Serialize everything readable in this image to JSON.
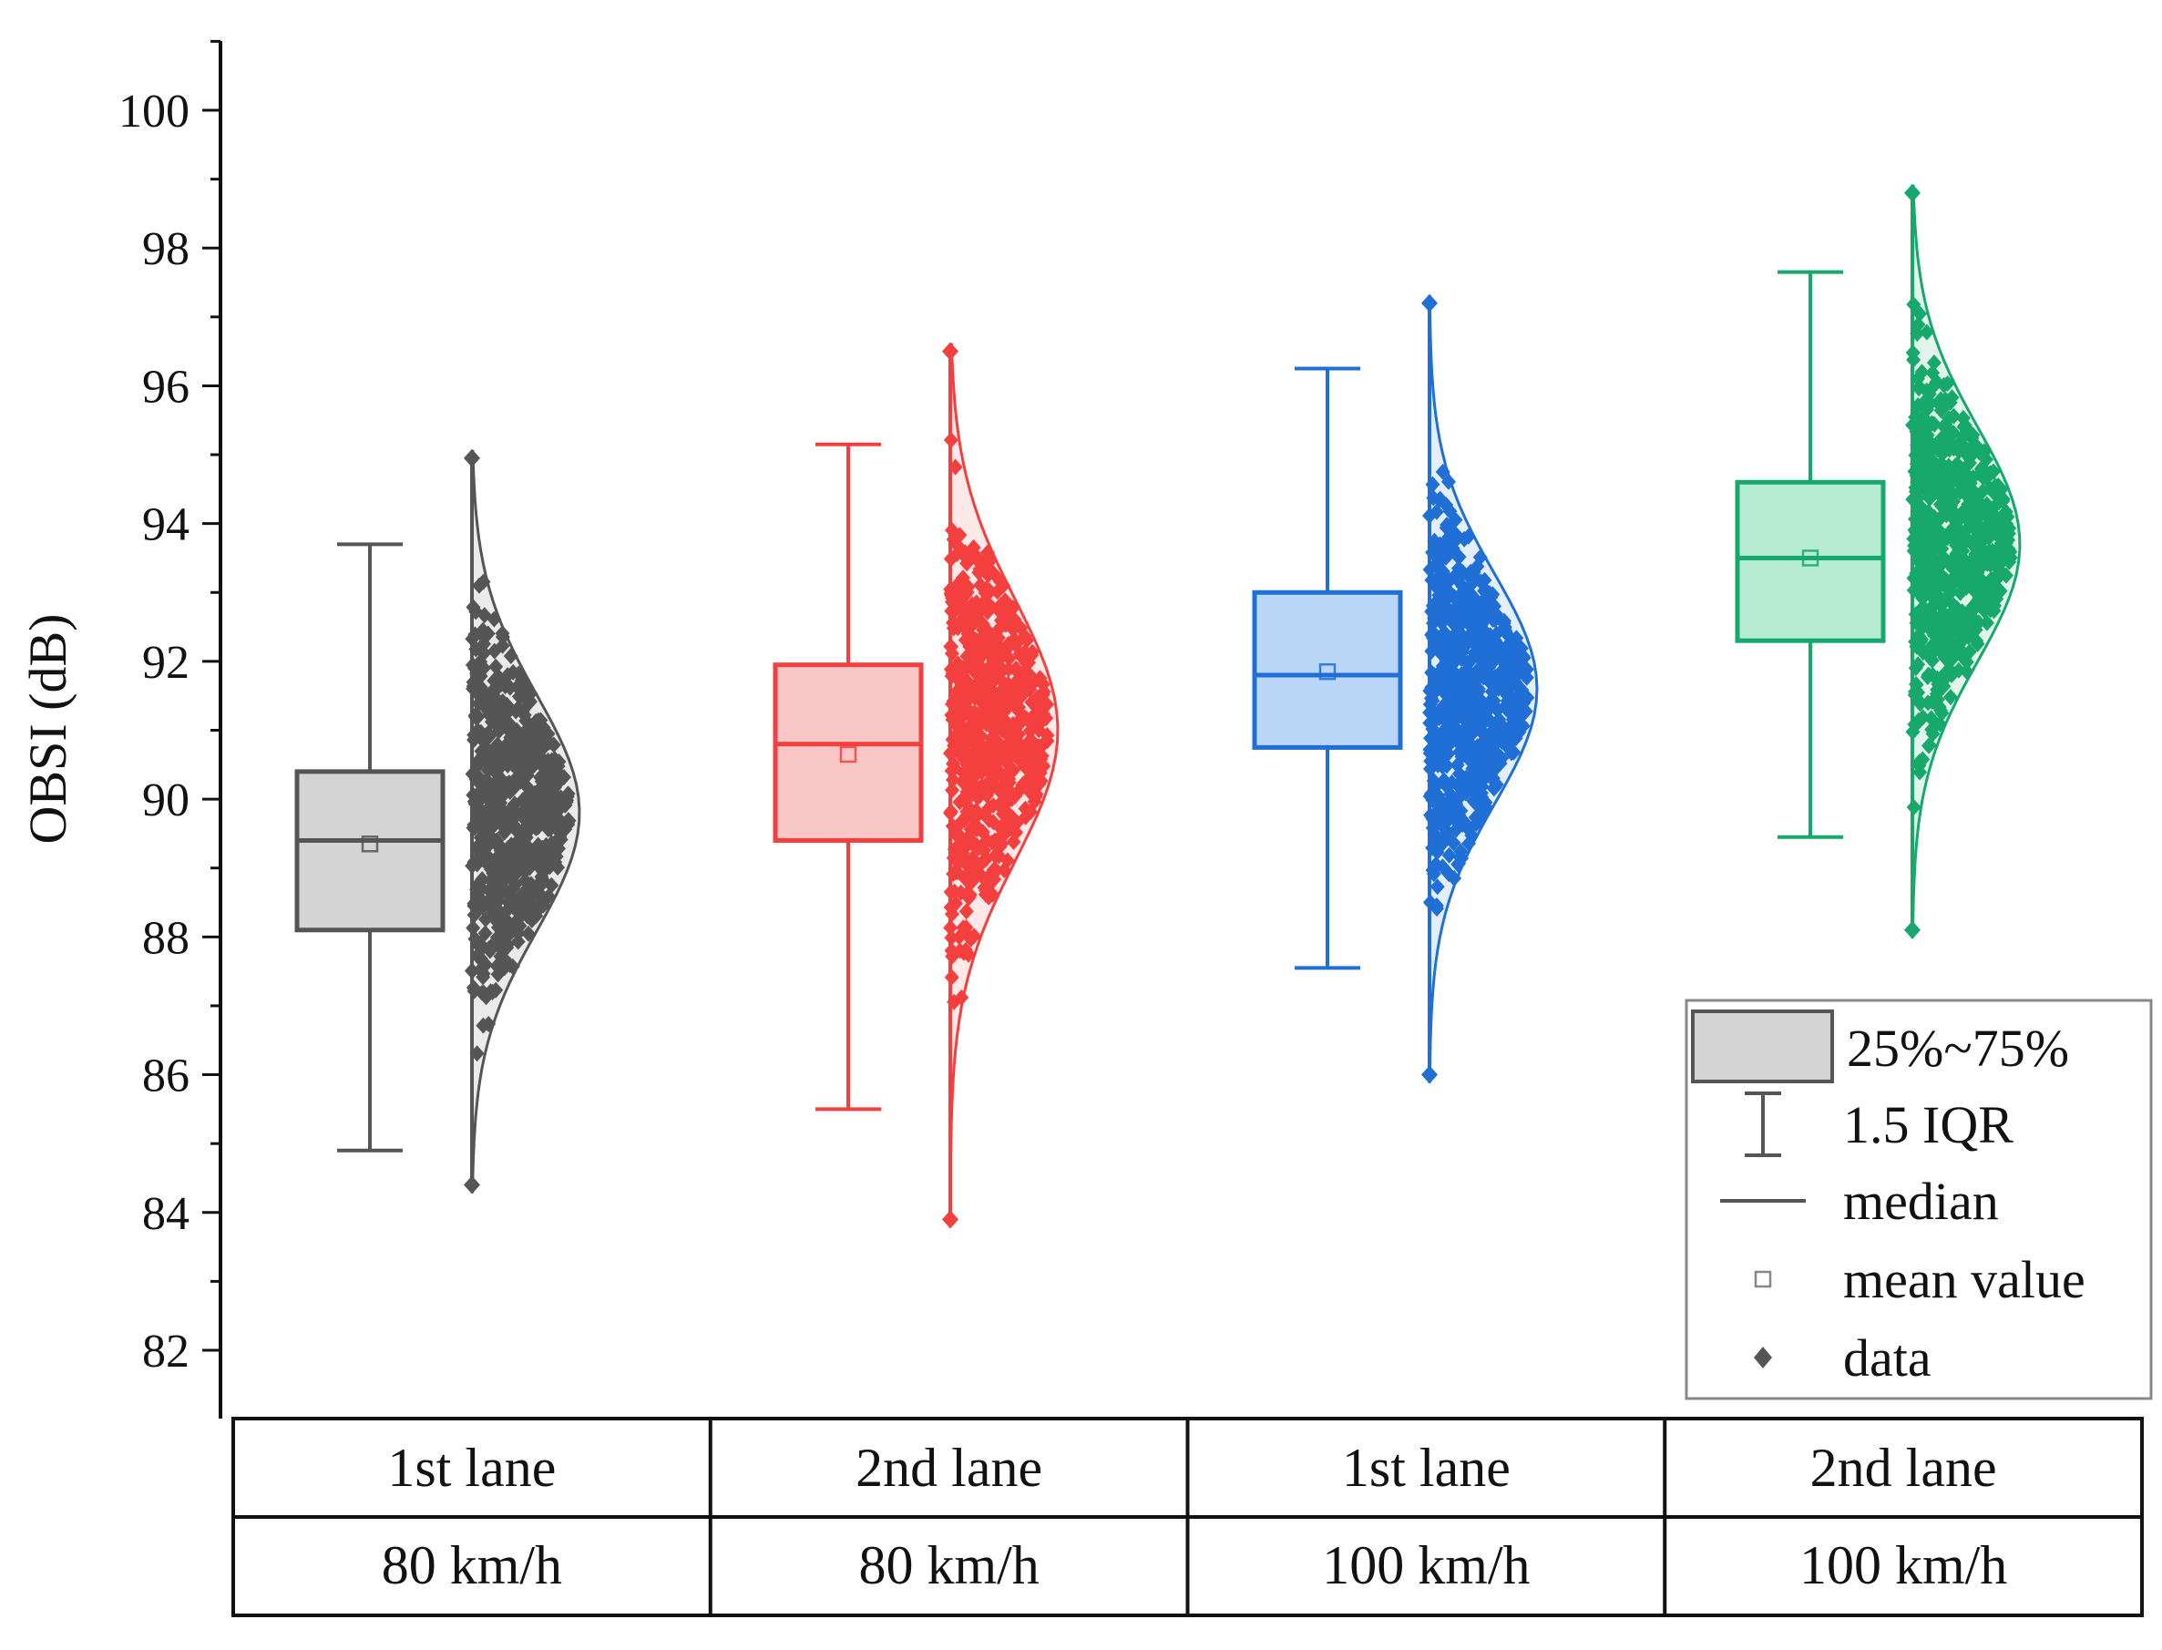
{
  "chart_data": {
    "type": "box-with-distribution",
    "title": "",
    "ylabel": "OBSI (dB)",
    "xlabel": "",
    "ylim": [
      81,
      101
    ],
    "yticks": [
      82,
      84,
      86,
      88,
      90,
      92,
      94,
      96,
      98,
      100
    ],
    "grid": false,
    "legend_position": "bottom-right",
    "groups": [
      {
        "lane": "1st lane",
        "speed": "80 km/h",
        "color": "#555555",
        "fill": "#d4d4d4",
        "whisker_low": 84.9,
        "q1": 88.1,
        "median": 89.4,
        "mean": 89.35,
        "q3": 90.4,
        "whisker_high": 93.7,
        "data_min": 84.3,
        "data_max": 95.05,
        "dist_peak": 89.8
      },
      {
        "lane": "2nd lane",
        "speed": "80 km/h",
        "color": "#f43f3f",
        "fill": "#f9c6c6",
        "whisker_low": 85.5,
        "q1": 89.4,
        "median": 90.8,
        "mean": 90.65,
        "q3": 91.95,
        "whisker_high": 95.15,
        "data_min": 83.8,
        "data_max": 96.6,
        "dist_peak": 91.0
      },
      {
        "lane": "1st lane",
        "speed": "100 km/h",
        "color": "#1f6fd6",
        "fill": "#b9d6f7",
        "whisker_low": 87.55,
        "q1": 90.75,
        "median": 91.8,
        "mean": 91.85,
        "q3": 93.0,
        "whisker_high": 96.25,
        "data_min": 85.9,
        "data_max": 97.3,
        "dist_peak": 91.6
      },
      {
        "lane": "2nd lane",
        "speed": "100 km/h",
        "color": "#17a86b",
        "fill": "#b6ecd4",
        "whisker_low": 89.45,
        "q1": 92.3,
        "median": 93.5,
        "mean": 93.5,
        "q3": 94.6,
        "whisker_high": 97.65,
        "data_min": 88.0,
        "data_max": 98.9,
        "dist_peak": 93.7
      }
    ],
    "legend": [
      {
        "key": "box",
        "label": "25%~75%"
      },
      {
        "key": "whisker",
        "label": "1.5 IQR"
      },
      {
        "key": "median",
        "label": "median"
      },
      {
        "key": "mean",
        "label": "mean value"
      },
      {
        "key": "data",
        "label": "data"
      }
    ]
  }
}
